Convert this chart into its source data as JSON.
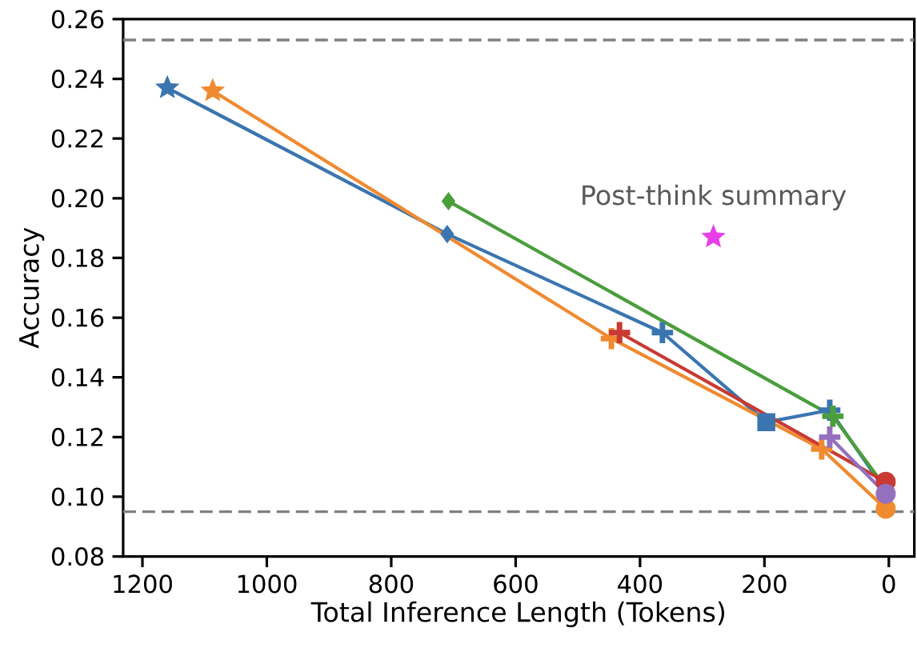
{
  "chart_data": {
    "type": "line",
    "xlabel": "Total Inference Length (Tokens)",
    "ylabel": "Accuracy",
    "xlim": [
      1231,
      -41
    ],
    "ylim": [
      0.08,
      0.26
    ],
    "xticks": [
      1200,
      1000,
      800,
      600,
      400,
      200,
      0
    ],
    "yticks": [
      {
        "value": 0.08,
        "label": "0.08"
      },
      {
        "value": 0.1,
        "label": "0.10"
      },
      {
        "value": 0.12,
        "label": "0.12"
      },
      {
        "value": 0.14,
        "label": "0.14"
      },
      {
        "value": 0.16,
        "label": "0.16"
      },
      {
        "value": 0.18,
        "label": "0.18"
      },
      {
        "value": 0.2,
        "label": "0.20"
      },
      {
        "value": 0.22,
        "label": "0.22"
      },
      {
        "value": 0.24,
        "label": "0.24"
      },
      {
        "value": 0.26,
        "label": "0.26"
      }
    ],
    "grid": false,
    "series": [
      {
        "color": "#3a75b0",
        "marker": "none",
        "x": [
          1160,
          710,
          364,
          197,
          95,
          5
        ],
        "values": [
          0.237,
          0.188,
          0.155,
          0.125,
          0.129,
          0.102
        ]
      },
      {
        "color": "#f08a30",
        "marker": "none",
        "x": [
          1087,
          446,
          108,
          5
        ],
        "values": [
          0.236,
          0.153,
          0.116,
          0.096
        ]
      },
      {
        "color": "#4a9e3c",
        "marker": "none",
        "x": [
          708,
          90,
          5
        ],
        "values": [
          0.199,
          0.127,
          0.103
        ]
      },
      {
        "color": "#c83a32",
        "marker": "none",
        "x": [
          433,
          5
        ],
        "values": [
          0.155,
          0.105
        ]
      },
      {
        "color": "#9470bf",
        "marker": "none",
        "x": [
          95,
          5
        ],
        "values": [
          0.12,
          0.101
        ]
      },
      {
        "type": "scatter",
        "marker": "star",
        "x": [
          1160,
          1087
        ],
        "values": [
          0.237,
          0.236
        ],
        "colors": [
          "#3a75b0",
          "#f08a30"
        ]
      },
      {
        "type": "scatter",
        "marker": "diamond",
        "x": [
          710,
          708
        ],
        "values": [
          0.188,
          0.199
        ],
        "colors": [
          "#3a75b0",
          "#4a9e3c"
        ]
      },
      {
        "type": "scatter",
        "marker": "cross",
        "x": [
          364,
          446,
          433,
          108,
          95,
          95,
          90
        ],
        "values": [
          0.155,
          0.153,
          0.155,
          0.116,
          0.12,
          0.129,
          0.127
        ],
        "colors": [
          "#3a75b0",
          "#f08a30",
          "#c83a32",
          "#f08a30",
          "#9470bf",
          "#3a75b0",
          "#4a9e3c"
        ]
      },
      {
        "type": "scatter",
        "marker": "square",
        "x": [
          197
        ],
        "values": [
          0.125
        ],
        "colors": [
          "#3a75b0"
        ]
      },
      {
        "type": "scatter",
        "marker": "circle",
        "x": [
          5,
          5,
          5
        ],
        "values": [
          0.105,
          0.096,
          0.101
        ],
        "colors": [
          "#c83a32",
          "#f08a30",
          "#9470bf"
        ]
      },
      {
        "type": "scatter",
        "marker": "star",
        "x": [
          282
        ],
        "values": [
          0.187
        ],
        "colors": [
          "#e83ee8"
        ]
      }
    ],
    "ref_lines": [
      {
        "axis": "y",
        "value": 0.253,
        "color": "#808080",
        "line_style": "dashed"
      },
      {
        "axis": "y",
        "value": 0.095,
        "color": "#808080",
        "line_style": "dashed"
      }
    ],
    "annotations": [
      {
        "text": "Post-think summary",
        "x": 282,
        "y": 0.187
      }
    ]
  }
}
